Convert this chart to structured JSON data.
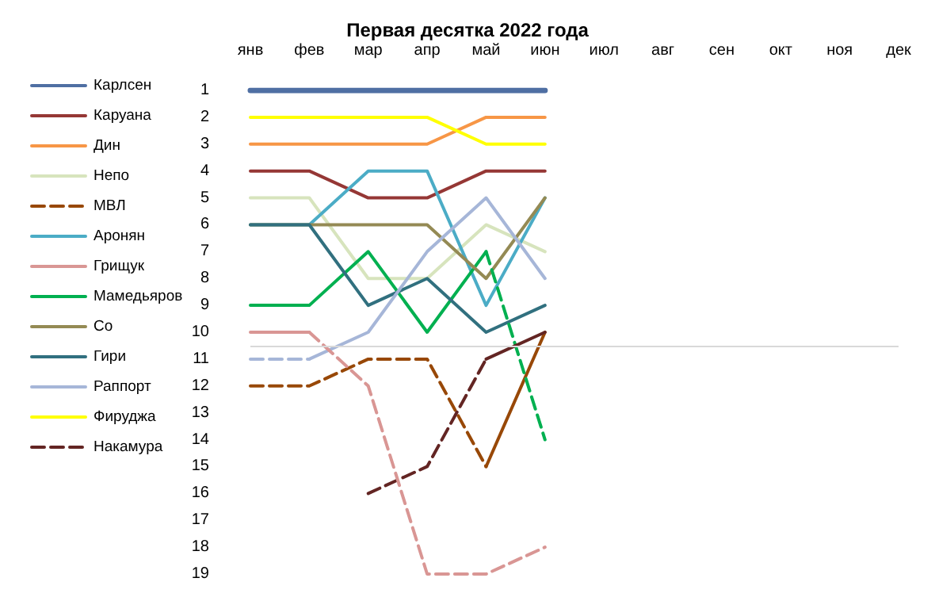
{
  "chart_data": {
    "type": "line",
    "title": "Первая десятка 2022 года",
    "categories": [
      "янв",
      "фев",
      "мар",
      "апр",
      "май",
      "июн",
      "июл",
      "авг",
      "сен",
      "окт",
      "ноя",
      "дек"
    ],
    "ylim": [
      19,
      1
    ],
    "yticks": [
      1,
      2,
      3,
      4,
      5,
      6,
      7,
      8,
      9,
      10,
      11,
      12,
      13,
      14,
      15,
      16,
      17,
      18,
      19
    ],
    "grid": false,
    "legend": "left",
    "marker": "none",
    "line_style": "solid",
    "ref_lines": [
      {
        "axis": "y",
        "value": 10.5,
        "color": "#d9d9d9"
      }
    ],
    "series": [
      {
        "name": "Карлсен",
        "color": "#4f6fa3",
        "values": [
          1,
          1,
          1,
          1,
          1,
          1,
          null,
          null,
          null,
          null,
          null,
          null
        ]
      },
      {
        "name": "Каруана",
        "color": "#953735",
        "values": [
          4,
          4,
          5,
          5,
          4,
          4,
          null,
          null,
          null,
          null,
          null,
          null
        ]
      },
      {
        "name": "Дин",
        "color": "#f79646",
        "values": [
          3,
          3,
          3,
          3,
          2,
          2,
          null,
          null,
          null,
          null,
          null,
          null
        ]
      },
      {
        "name": "Непо",
        "color": "#d7e4bd",
        "values": [
          5,
          5,
          8,
          8,
          6,
          7,
          null,
          null,
          null,
          null,
          null,
          null
        ]
      },
      {
        "name": "МВЛ",
        "color": "#984807",
        "line_style": "dashed",
        "values": [
          12,
          12,
          11,
          11,
          15,
          null,
          null,
          null,
          null,
          null,
          null,
          null
        ]
      },
      {
        "name": "Аронян",
        "color": "#4bacc6",
        "values": [
          6,
          6,
          4,
          4,
          9,
          5,
          null,
          null,
          null,
          null,
          null,
          null
        ]
      },
      {
        "name": "Грищук",
        "color": "#d99694",
        "values": [
          10,
          10,
          null,
          null,
          null,
          null,
          null,
          null,
          null,
          null,
          null,
          null
        ]
      },
      {
        "name": "Мамедьяров",
        "color": "#00b050",
        "values": [
          9,
          9,
          7,
          10,
          7,
          null,
          null,
          null,
          null,
          null,
          null,
          null
        ]
      },
      {
        "name": "Со",
        "color": "#948a54",
        "values": [
          6,
          6,
          6,
          6,
          8,
          5,
          null,
          null,
          null,
          null,
          null,
          null
        ]
      },
      {
        "name": "Гири",
        "color": "#31707f",
        "values": [
          6,
          6,
          9,
          8,
          10,
          9,
          null,
          null,
          null,
          null,
          null,
          null
        ]
      },
      {
        "name": "Раппорт",
        "color": "#a6b6d8",
        "values": [
          null,
          11,
          10,
          7,
          5,
          8,
          null,
          null,
          null,
          null,
          null,
          null
        ]
      },
      {
        "name": "Фируджа",
        "color": "#ffff00",
        "values": [
          2,
          2,
          2,
          2,
          3,
          3,
          null,
          null,
          null,
          null,
          null,
          null
        ]
      },
      {
        "name": "Накамура",
        "color": "#632523",
        "line_style": "dashed",
        "values": [
          null,
          null,
          16,
          15,
          11,
          null,
          null,
          null,
          null,
          null,
          null,
          null
        ]
      },
      {
        "color": "#984807",
        "values": [
          null,
          null,
          null,
          null,
          15,
          10,
          null,
          null,
          null,
          null,
          null,
          null
        ]
      },
      {
        "color": "#d99694",
        "line_style": "dashed",
        "values": [
          null,
          10,
          12,
          19,
          19,
          18,
          null,
          null,
          null,
          null,
          null,
          null
        ]
      },
      {
        "color": "#00b050",
        "line_style": "dashed",
        "values": [
          null,
          null,
          null,
          null,
          7,
          14,
          null,
          null,
          null,
          null,
          null,
          null
        ]
      },
      {
        "color": "#a6b6d8",
        "line_style": "dashed",
        "values": [
          11,
          11,
          null,
          null,
          null,
          null,
          null,
          null,
          null,
          null,
          null,
          null
        ]
      },
      {
        "color": "#632523",
        "values": [
          null,
          null,
          null,
          null,
          11,
          10,
          null,
          null,
          null,
          null,
          null,
          null
        ]
      }
    ]
  }
}
